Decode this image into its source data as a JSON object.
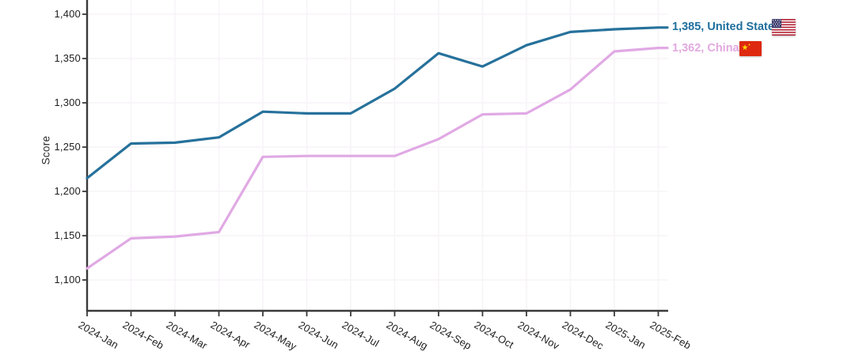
{
  "chart_data": {
    "type": "line",
    "title": "",
    "xlabel": "",
    "ylabel": "Score",
    "grid": true,
    "legend_position": "right-line-end",
    "ylim": [
      1100,
      1400
    ],
    "yticks": [
      "1,400",
      "1,350",
      "1,300",
      "1,250",
      "1,200",
      "1,150",
      "1,100"
    ],
    "categories": [
      "2024-Jan",
      "2024-Feb",
      "2024-Mar",
      "2024-Apr",
      "2024-May",
      "2024-Jun",
      "2024-Jul",
      "2024-Aug",
      "2024-Sep",
      "2024-Oct",
      "2024-Nov",
      "2024-Dec",
      "2025-Jan",
      "2025-Feb"
    ],
    "series": [
      {
        "name": "United States",
        "color": "#26719b",
        "label_color": "#1e6f9d",
        "end_label": "1,385, United States",
        "flag_icon": "us-flag-icon",
        "values": [
          1215,
          1254,
          1255,
          1261,
          1290,
          1288,
          1288,
          1316,
          1356,
          1341,
          1365,
          1380,
          1383,
          1385
        ]
      },
      {
        "name": "China",
        "color": "#e0a9e4",
        "label_color": "#e2a9e0",
        "end_label": "1,362, China",
        "flag_icon": "china-flag-icon",
        "values": [
          1113,
          1147,
          1149,
          1154,
          1239,
          1240,
          1240,
          1240,
          1259,
          1287,
          1288,
          1315,
          1358,
          1362
        ]
      }
    ]
  },
  "colors": {
    "axis": "#3a3a3a",
    "grid": "#f7f4f7",
    "tick": "#3a3a3a",
    "text": "#1f1f1f",
    "background": "#ffffff"
  }
}
